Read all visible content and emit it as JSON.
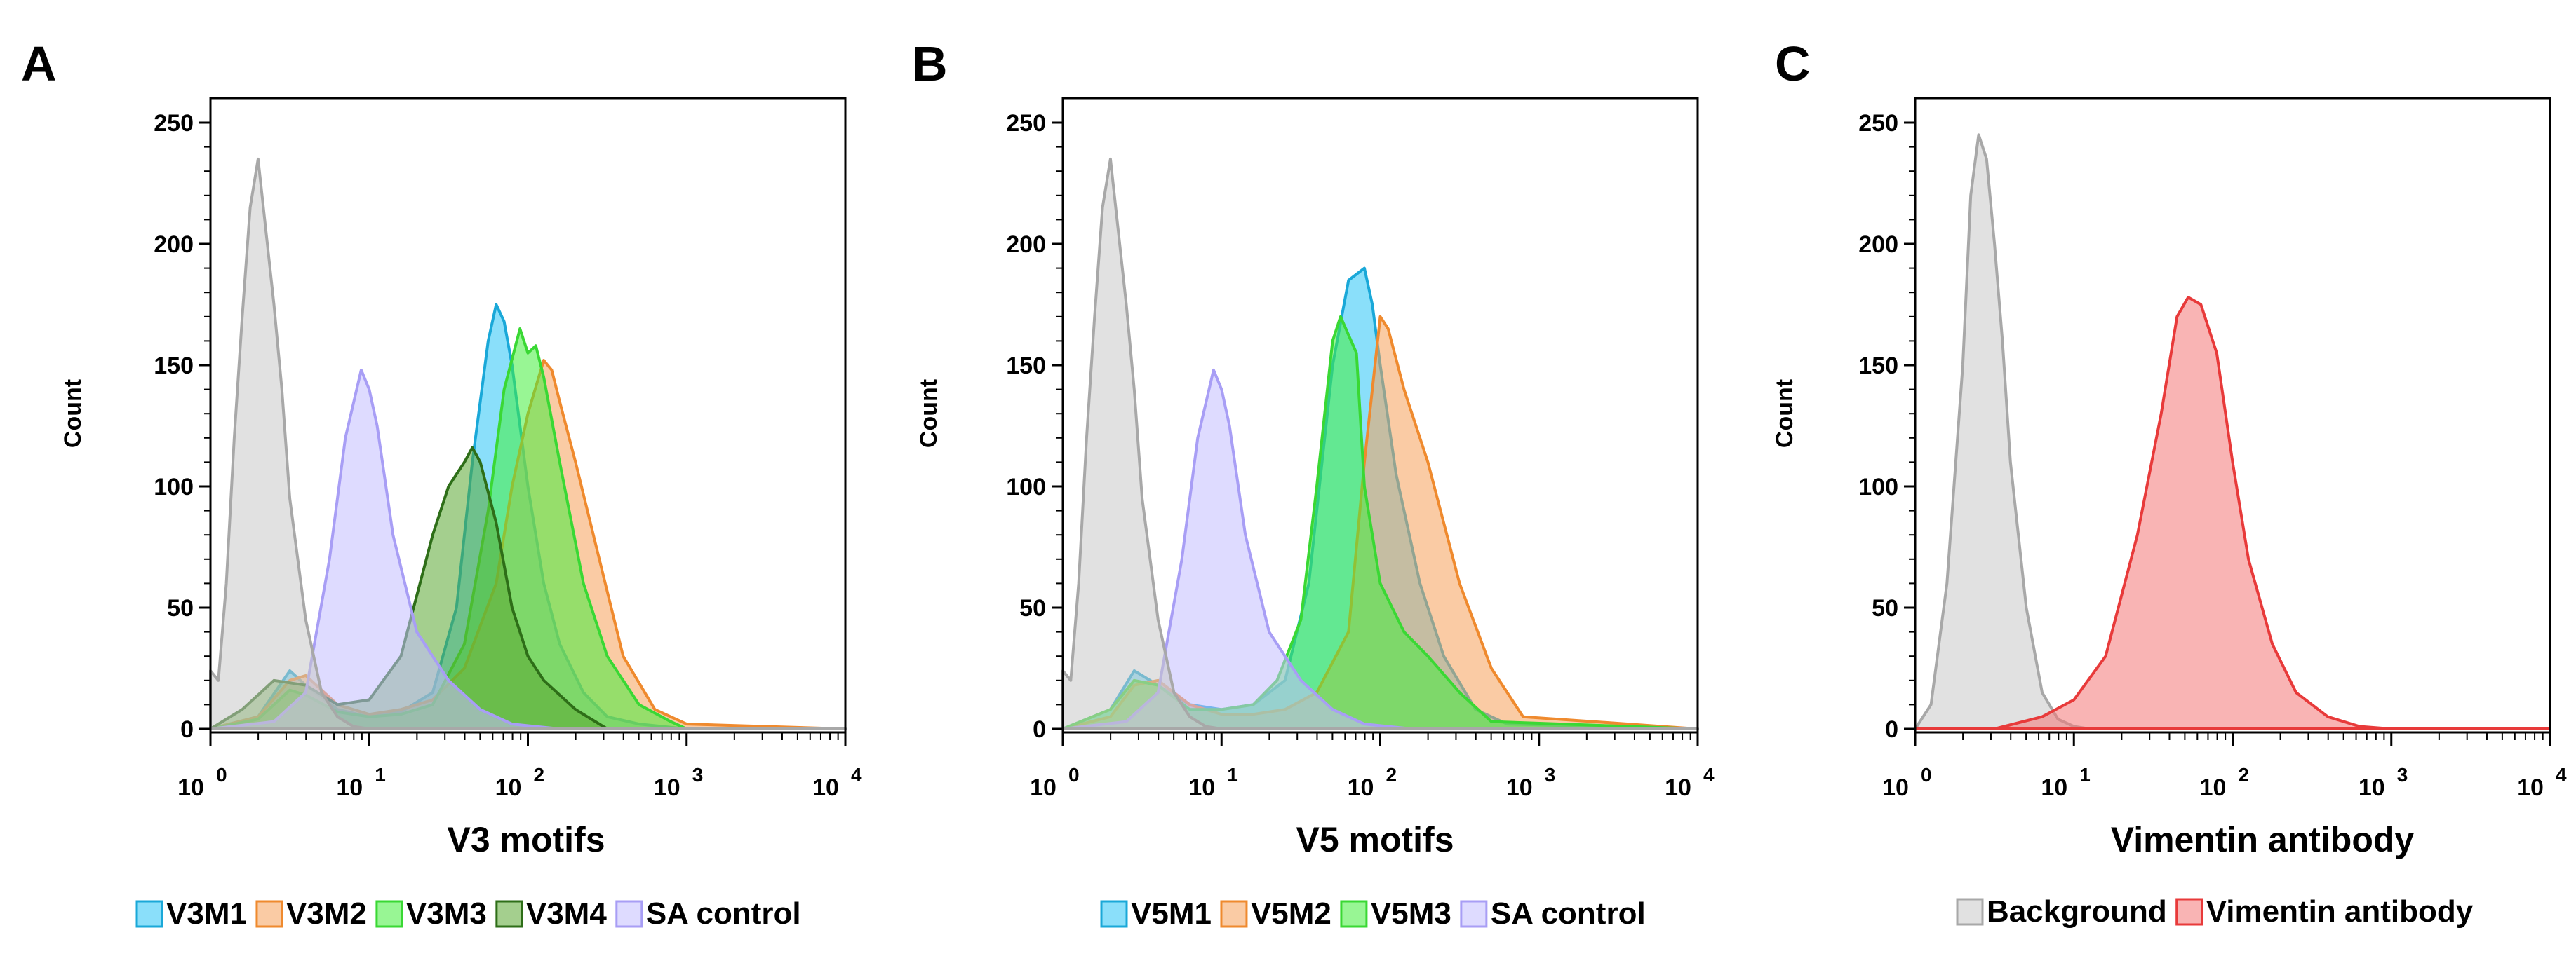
{
  "chart_data": [
    {
      "type": "area",
      "panel": "A",
      "xlabel": "V3 motifs",
      "ylabel": "Count",
      "xscale": "log10",
      "xlim_exp": [
        0,
        4
      ],
      "ylim": [
        0,
        250
      ],
      "yticks": [
        "0",
        "50",
        "100",
        "150",
        "200",
        "250"
      ],
      "xtick_base": "10",
      "xtick_exps": [
        "0",
        "1",
        "2",
        "3",
        "4"
      ],
      "legend_position": "bottom",
      "series": [
        {
          "name": "V3M1",
          "fill": "#29c5f6",
          "stroke": "#1aa8d8",
          "x": [
            0.0,
            0.3,
            0.5,
            0.6,
            0.8,
            1.0,
            1.2,
            1.4,
            1.55,
            1.65,
            1.75,
            1.8,
            1.85,
            1.9,
            2.0,
            2.1,
            2.2,
            2.35,
            2.5,
            2.7,
            3.0,
            4.0
          ],
          "y": [
            0,
            5,
            24,
            18,
            8,
            5,
            7,
            15,
            50,
            110,
            160,
            175,
            168,
            150,
            100,
            60,
            35,
            15,
            5,
            2,
            0,
            0
          ]
        },
        {
          "name": "V3M2",
          "fill": "#f5a05a",
          "stroke": "#ef8a2e",
          "x": [
            0.0,
            0.3,
            0.5,
            0.6,
            0.8,
            1.0,
            1.2,
            1.4,
            1.6,
            1.8,
            1.9,
            2.0,
            2.1,
            2.15,
            2.2,
            2.3,
            2.45,
            2.6,
            2.8,
            3.0,
            4.0
          ],
          "y": [
            0,
            5,
            20,
            22,
            10,
            6,
            8,
            12,
            25,
            60,
            100,
            130,
            152,
            148,
            135,
            110,
            70,
            30,
            8,
            2,
            0
          ]
        },
        {
          "name": "V3M3",
          "fill": "#44ef3c",
          "stroke": "#3ad834",
          "x": [
            0.0,
            0.3,
            0.5,
            0.6,
            0.8,
            1.0,
            1.2,
            1.4,
            1.6,
            1.75,
            1.85,
            1.95,
            2.0,
            2.05,
            2.1,
            2.2,
            2.35,
            2.5,
            2.7,
            2.9,
            3.0,
            4.0
          ],
          "y": [
            0,
            4,
            16,
            14,
            7,
            5,
            6,
            10,
            35,
            90,
            140,
            165,
            155,
            158,
            145,
            110,
            60,
            30,
            10,
            3,
            0,
            0
          ]
        },
        {
          "name": "V3M4",
          "fill": "#5aa832",
          "stroke": "#2e6e18",
          "x": [
            0.0,
            0.2,
            0.4,
            0.6,
            0.8,
            1.0,
            1.2,
            1.4,
            1.5,
            1.6,
            1.65,
            1.7,
            1.8,
            1.9,
            2.0,
            2.1,
            2.3,
            2.5,
            4.0
          ],
          "y": [
            0,
            8,
            20,
            18,
            10,
            12,
            30,
            80,
            100,
            110,
            116,
            110,
            85,
            50,
            30,
            20,
            8,
            0,
            0
          ]
        },
        {
          "name": "SA control",
          "fill": "#c3beff",
          "stroke": "#a89ef5",
          "x": [
            0.0,
            0.4,
            0.6,
            0.75,
            0.85,
            0.95,
            1.0,
            1.05,
            1.15,
            1.3,
            1.5,
            1.7,
            1.9,
            2.2,
            4.0
          ],
          "y": [
            0,
            3,
            15,
            70,
            120,
            148,
            140,
            125,
            80,
            40,
            20,
            8,
            2,
            0,
            0
          ]
        },
        {
          "name": "Background",
          "fill": "#c8c8c8",
          "stroke": "#a8a8a8",
          "x": [
            0.0,
            0.05,
            0.1,
            0.15,
            0.2,
            0.25,
            0.3,
            0.35,
            0.4,
            0.45,
            0.5,
            0.6,
            0.7,
            0.8,
            0.9,
            1.0,
            1.1,
            4.0
          ],
          "y": [
            24,
            20,
            60,
            120,
            170,
            215,
            235,
            205,
            175,
            140,
            95,
            45,
            15,
            5,
            1,
            0,
            0,
            0
          ]
        }
      ]
    },
    {
      "type": "area",
      "panel": "B",
      "xlabel": "V5 motifs",
      "ylabel": "Count",
      "xscale": "log10",
      "xlim_exp": [
        0,
        4
      ],
      "ylim": [
        0,
        250
      ],
      "yticks": [
        "0",
        "50",
        "100",
        "150",
        "200",
        "250"
      ],
      "xtick_base": "10",
      "xtick_exps": [
        "0",
        "1",
        "2",
        "3",
        "4"
      ],
      "legend_position": "bottom",
      "series": [
        {
          "name": "V5M1",
          "fill": "#29c5f6",
          "stroke": "#1aa8d8",
          "x": [
            0.0,
            0.3,
            0.45,
            0.6,
            0.8,
            1.0,
            1.2,
            1.4,
            1.55,
            1.7,
            1.8,
            1.9,
            1.95,
            2.0,
            2.1,
            2.25,
            2.4,
            2.6,
            2.8,
            4.0
          ],
          "y": [
            0,
            8,
            24,
            18,
            10,
            8,
            10,
            20,
            60,
            150,
            185,
            190,
            175,
            150,
            105,
            60,
            30,
            8,
            2,
            0
          ]
        },
        {
          "name": "V5M2",
          "fill": "#f5a05a",
          "stroke": "#ef8a2e",
          "x": [
            0.0,
            0.3,
            0.45,
            0.6,
            0.8,
            1.0,
            1.2,
            1.4,
            1.6,
            1.8,
            1.9,
            2.0,
            2.05,
            2.15,
            2.3,
            2.5,
            2.7,
            2.9,
            4.0
          ],
          "y": [
            0,
            5,
            18,
            20,
            10,
            6,
            6,
            8,
            15,
            40,
            110,
            170,
            165,
            140,
            110,
            60,
            25,
            5,
            0
          ]
        },
        {
          "name": "V5M3",
          "fill": "#44ef3c",
          "stroke": "#3ad834",
          "x": [
            0.0,
            0.3,
            0.45,
            0.6,
            0.8,
            1.0,
            1.2,
            1.35,
            1.5,
            1.6,
            1.7,
            1.75,
            1.85,
            1.9,
            2.0,
            2.15,
            2.3,
            2.5,
            2.7,
            4.0
          ],
          "y": [
            0,
            8,
            20,
            18,
            8,
            8,
            10,
            20,
            45,
            100,
            160,
            170,
            155,
            100,
            60,
            40,
            30,
            15,
            3,
            0
          ]
        },
        {
          "name": "SA control",
          "fill": "#c3beff",
          "stroke": "#a89ef5",
          "x": [
            0.0,
            0.4,
            0.6,
            0.75,
            0.85,
            0.95,
            1.0,
            1.05,
            1.15,
            1.3,
            1.5,
            1.7,
            1.9,
            2.2,
            4.0
          ],
          "y": [
            0,
            3,
            15,
            70,
            120,
            148,
            140,
            125,
            80,
            40,
            20,
            8,
            2,
            0,
            0
          ]
        },
        {
          "name": "Background",
          "fill": "#c8c8c8",
          "stroke": "#a8a8a8",
          "x": [
            0.0,
            0.05,
            0.1,
            0.15,
            0.2,
            0.25,
            0.3,
            0.35,
            0.4,
            0.45,
            0.5,
            0.6,
            0.7,
            0.8,
            0.9,
            1.0,
            1.1,
            4.0
          ],
          "y": [
            24,
            20,
            60,
            120,
            170,
            215,
            235,
            205,
            175,
            140,
            95,
            45,
            15,
            5,
            1,
            0,
            0,
            0
          ]
        }
      ]
    },
    {
      "type": "area",
      "panel": "C",
      "xlabel": "Vimentin antibody",
      "ylabel": "Count",
      "xscale": "log10",
      "xlim_exp": [
        0,
        4
      ],
      "ylim": [
        0,
        250
      ],
      "yticks": [
        "0",
        "50",
        "100",
        "150",
        "200",
        "250"
      ],
      "xtick_base": "10",
      "xtick_exps": [
        "0",
        "1",
        "2",
        "3",
        "4"
      ],
      "legend_position": "bottom",
      "series": [
        {
          "name": "Background",
          "fill": "#c8c8c8",
          "stroke": "#a8a8a8",
          "x": [
            0.0,
            0.1,
            0.2,
            0.3,
            0.35,
            0.4,
            0.45,
            0.5,
            0.55,
            0.6,
            0.7,
            0.8,
            0.9,
            1.0,
            1.1,
            4.0
          ],
          "y": [
            0,
            10,
            60,
            150,
            220,
            245,
            235,
            200,
            160,
            110,
            50,
            15,
            4,
            1,
            0,
            0
          ]
        },
        {
          "name": "Vimentin antibody",
          "fill": "#f47676",
          "stroke": "#e83a3a",
          "x": [
            0.0,
            0.5,
            0.8,
            1.0,
            1.2,
            1.4,
            1.55,
            1.65,
            1.72,
            1.8,
            1.9,
            2.0,
            2.1,
            2.25,
            2.4,
            2.6,
            2.8,
            3.0,
            4.0
          ],
          "y": [
            0,
            0,
            5,
            12,
            30,
            80,
            130,
            170,
            178,
            175,
            155,
            110,
            70,
            35,
            15,
            5,
            1,
            0,
            0
          ]
        }
      ]
    }
  ],
  "legends": {
    "A": [
      "V3M1",
      "V3M2",
      "V3M3",
      "V3M4",
      "SA control"
    ],
    "B": [
      "V5M1",
      "V5M2",
      "V5M3",
      "SA control"
    ],
    "C": [
      "Background",
      "Vimentin antibody"
    ]
  }
}
